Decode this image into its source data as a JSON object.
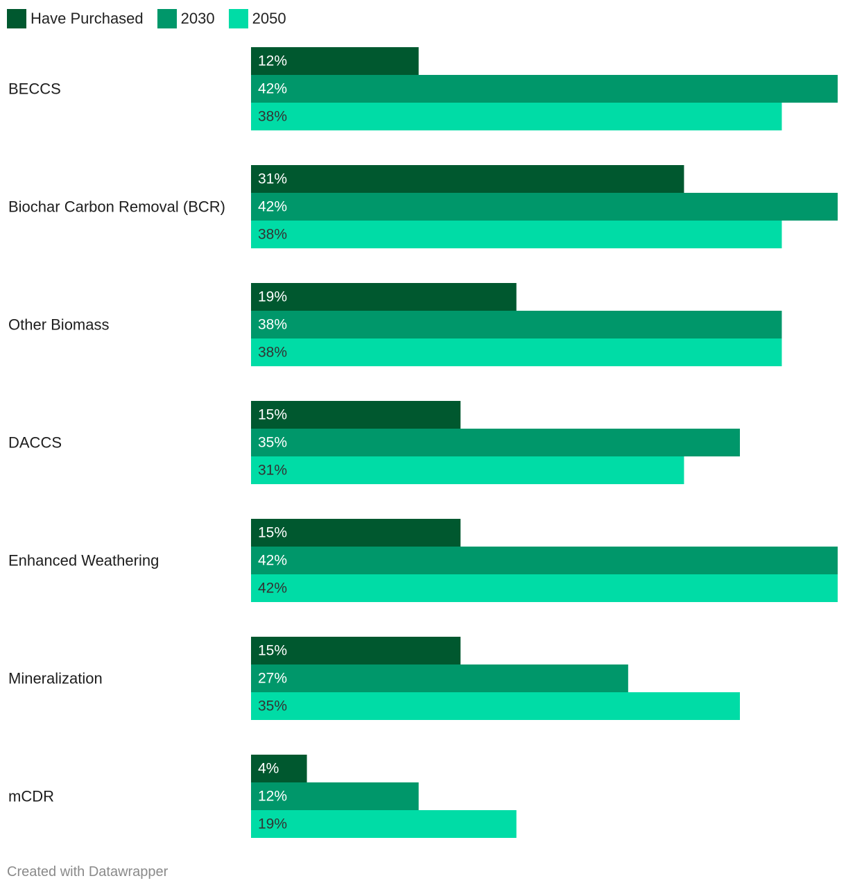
{
  "chart_data": {
    "type": "bar",
    "orientation": "horizontal",
    "categories": [
      "BECCS",
      "Biochar Carbon Removal (BCR)",
      "Other Biomass",
      "DACCS",
      "Enhanced Weathering",
      "Mineralization",
      "mCDR"
    ],
    "series": [
      {
        "name": "Have Purchased",
        "color": "#00582f",
        "values": [
          12,
          31,
          19,
          15,
          15,
          15,
          4
        ]
      },
      {
        "name": "2030",
        "color": "#00976a",
        "values": [
          42,
          42,
          38,
          35,
          42,
          27,
          12
        ]
      },
      {
        "name": "2050",
        "color": "#00dca6",
        "values": [
          38,
          38,
          38,
          31,
          42,
          35,
          19
        ]
      }
    ],
    "value_suffix": "%",
    "xlim": [
      0,
      42
    ],
    "legend": "top-left",
    "grid": false
  },
  "footer": "Created with Datawrapper",
  "colors": {
    "label_light": "#ffffff",
    "label_dark": "#333333"
  }
}
